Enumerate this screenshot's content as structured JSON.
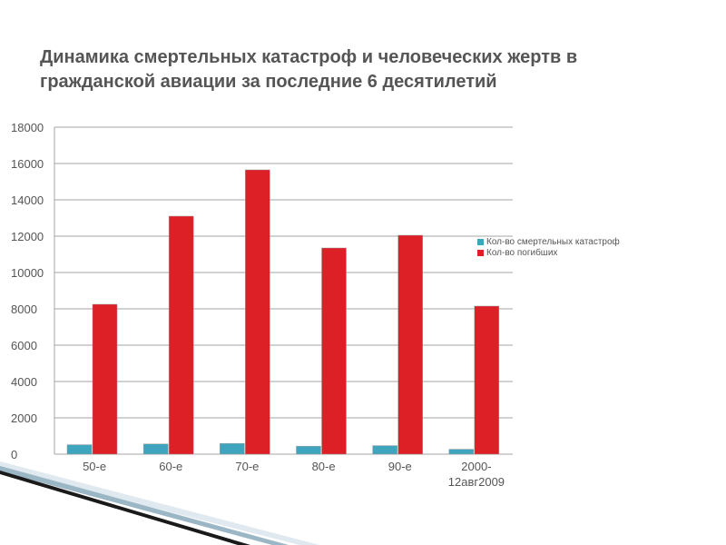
{
  "slide": {
    "title": "Динамика смертельных катастроф и человеческих жертв в гражданской авиации за последние 6 десятилетий"
  },
  "chart_data": {
    "type": "bar",
    "categories": [
      "50-е",
      "60-е",
      "70-е",
      "80-е",
      "90-е",
      "2000-\n12авг2009"
    ],
    "series": [
      {
        "name": "Кол-во смертельных катастроф",
        "color": "#3fa4bd",
        "values": [
          520,
          560,
          590,
          440,
          470,
          270
        ]
      },
      {
        "name": "Кол-во погибших",
        "color": "#dd1f26",
        "values": [
          8250,
          13100,
          15650,
          11350,
          12050,
          8150
        ]
      }
    ],
    "ylim": [
      0,
      18000
    ],
    "yticks": [
      0,
      2000,
      4000,
      6000,
      8000,
      10000,
      12000,
      14000,
      16000,
      18000
    ],
    "grid": true,
    "legend_position": "right"
  }
}
